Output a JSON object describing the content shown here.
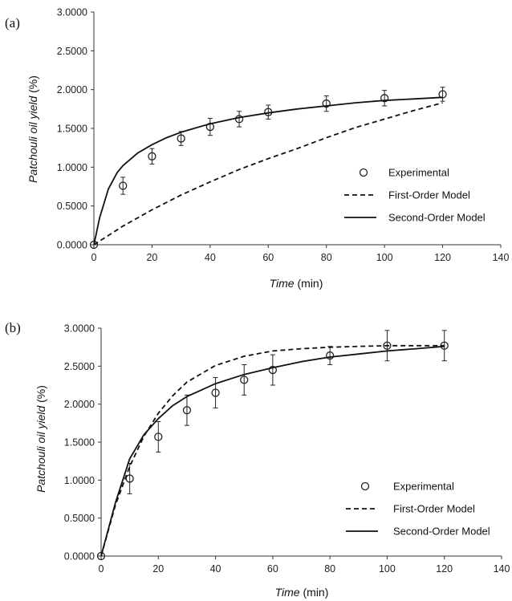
{
  "chart_data": [
    {
      "type": "scatter",
      "panel_label": "(a)",
      "xlabel_italic": "Time",
      "xlabel_unit": " (min)",
      "ylabel_italic": "Patchouli oil yield",
      "ylabel_unit": " (%)",
      "xlim": [
        0,
        140
      ],
      "ylim": [
        0,
        3
      ],
      "xticks": [
        0,
        20,
        40,
        60,
        80,
        100,
        120,
        140
      ],
      "yticks": [
        0,
        0.5,
        1,
        1.5,
        2,
        2.5,
        3
      ],
      "ytick_labels": [
        "0.0000",
        "0.5000",
        "1.0000",
        "1.5000",
        "2.0000",
        "2.5000",
        "3.0000"
      ],
      "grid": false,
      "legend_position": "center-right",
      "series": [
        {
          "name": "Experimental",
          "style": "marker-circle",
          "x": [
            0,
            10,
            20,
            30,
            40,
            50,
            60,
            80,
            100,
            120
          ],
          "y": [
            0,
            0.76,
            1.14,
            1.37,
            1.52,
            1.62,
            1.71,
            1.82,
            1.89,
            1.94
          ],
          "error": [
            0,
            0.11,
            0.1,
            0.09,
            0.11,
            0.1,
            0.09,
            0.1,
            0.1,
            0.09
          ]
        },
        {
          "name": "First-Order Model",
          "style": "dashed",
          "x": [
            0,
            10,
            20,
            30,
            40,
            50,
            60,
            70,
            80,
            90,
            100,
            110,
            120
          ],
          "y": [
            0,
            0.24,
            0.45,
            0.64,
            0.81,
            0.97,
            1.11,
            1.24,
            1.38,
            1.51,
            1.62,
            1.73,
            1.83
          ]
        },
        {
          "name": "Second-Order Model",
          "style": "solid",
          "x": [
            0,
            2,
            5,
            8,
            10,
            15,
            20,
            25,
            30,
            40,
            50,
            60,
            70,
            80,
            90,
            100,
            110,
            120
          ],
          "y": [
            0,
            0.35,
            0.72,
            0.93,
            1.02,
            1.18,
            1.29,
            1.38,
            1.45,
            1.56,
            1.64,
            1.7,
            1.75,
            1.79,
            1.83,
            1.86,
            1.88,
            1.9
          ]
        }
      ]
    },
    {
      "type": "scatter",
      "panel_label": "(b)",
      "xlabel_italic": "Time",
      "xlabel_unit": " (min)",
      "ylabel_italic": "Patchouli oil yield",
      "ylabel_unit": " (%)",
      "xlim": [
        0,
        140
      ],
      "ylim": [
        0,
        3
      ],
      "xticks": [
        0,
        20,
        40,
        60,
        80,
        100,
        120,
        140
      ],
      "yticks": [
        0,
        0.5,
        1,
        1.5,
        2,
        2.5,
        3
      ],
      "ytick_labels": [
        "0.0000",
        "0.5000",
        "1.0000",
        "1.5000",
        "2.0000",
        "2.5000",
        "3.0000"
      ],
      "grid": false,
      "legend_position": "bottom-right",
      "series": [
        {
          "name": "Experimental",
          "style": "marker-circle",
          "x": [
            0,
            10,
            20,
            30,
            40,
            50,
            60,
            80,
            100,
            120
          ],
          "y": [
            0,
            1.02,
            1.57,
            1.92,
            2.15,
            2.32,
            2.45,
            2.64,
            2.77,
            2.77
          ],
          "error": [
            0,
            0.2,
            0.2,
            0.2,
            0.2,
            0.2,
            0.2,
            0.12,
            0.2,
            0.2
          ]
        },
        {
          "name": "First-Order Model",
          "style": "dashed",
          "x": [
            0,
            5,
            10,
            15,
            20,
            25,
            30,
            40,
            50,
            60,
            70,
            80,
            90,
            100,
            110,
            120
          ],
          "y": [
            0,
            0.67,
            1.18,
            1.58,
            1.88,
            2.11,
            2.29,
            2.51,
            2.63,
            2.7,
            2.73,
            2.75,
            2.76,
            2.77,
            2.77,
            2.77
          ]
        },
        {
          "name": "Second-Order Model",
          "style": "solid",
          "x": [
            0,
            5,
            10,
            15,
            20,
            25,
            30,
            40,
            50,
            60,
            70,
            80,
            90,
            100,
            110,
            120
          ],
          "y": [
            0,
            0.7,
            1.28,
            1.6,
            1.81,
            1.98,
            2.1,
            2.27,
            2.39,
            2.48,
            2.56,
            2.62,
            2.66,
            2.7,
            2.73,
            2.76
          ]
        }
      ]
    }
  ]
}
